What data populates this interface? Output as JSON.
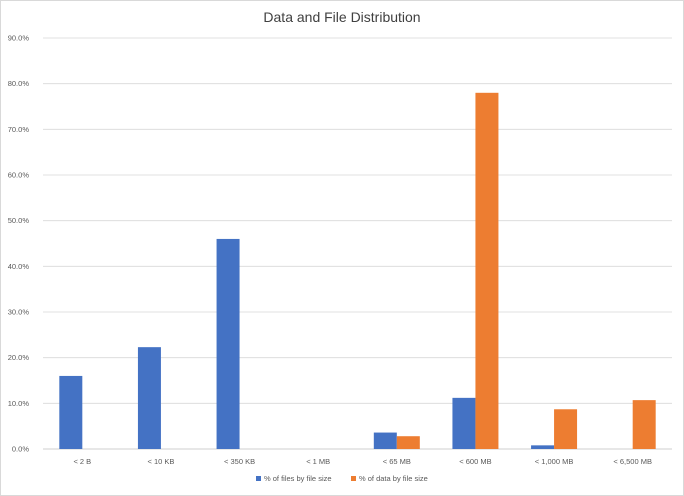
{
  "chart_data": {
    "type": "bar",
    "title": "Data and File Distribution",
    "xlabel": "",
    "ylabel": "",
    "categories": [
      "< 2 B",
      "< 10 KB",
      "< 350 KB",
      "< 1 MB",
      "< 65 MB",
      "< 600 MB",
      "< 1,000 MB",
      "< 6,500 MB"
    ],
    "series": [
      {
        "name": "% of files by file size",
        "color": "#4472c4",
        "values": [
          16.0,
          22.3,
          46.0,
          0.0,
          3.6,
          11.2,
          0.8,
          0.0
        ]
      },
      {
        "name": "% of data by file size",
        "color": "#ed7d31",
        "values": [
          0.0,
          0.0,
          0.0,
          0.0,
          2.8,
          78.0,
          8.7,
          10.7
        ]
      }
    ],
    "ylim": [
      0,
      90
    ],
    "yticks": [
      "0.0%",
      "10.0%",
      "20.0%",
      "30.0%",
      "40.0%",
      "50.0%",
      "60.0%",
      "70.0%",
      "80.0%",
      "90.0%"
    ],
    "grid": true,
    "legend_position": "bottom"
  }
}
